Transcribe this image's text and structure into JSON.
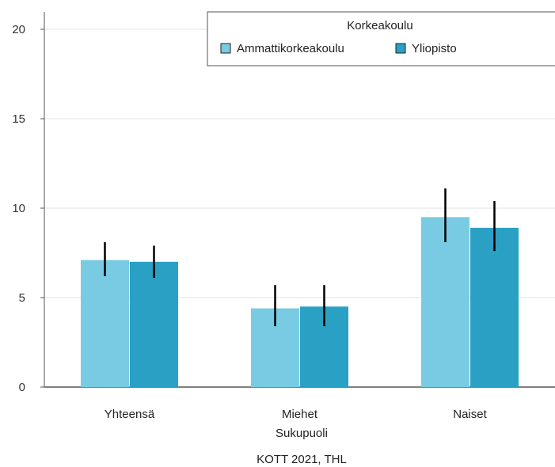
{
  "chart_data": {
    "type": "bar",
    "categories": [
      "Yhteensä",
      "Miehet",
      "Naiset"
    ],
    "xlabel": "Sukupuoli",
    "ylabel": "",
    "ylim": [
      0,
      20
    ],
    "yticks": [
      0,
      5,
      10,
      15,
      20
    ],
    "grid": true,
    "legend": {
      "title": "Korkeakoulu",
      "position": "top-right"
    },
    "series": [
      {
        "name": "Ammattikorkeakoulu",
        "color": "#79cbe3",
        "values": [
          7.1,
          4.4,
          9.5
        ],
        "error_low": [
          6.2,
          3.4,
          8.1
        ],
        "error_high": [
          8.1,
          5.7,
          11.1
        ]
      },
      {
        "name": "Yliopisto",
        "color": "#2aa0c4",
        "values": [
          7.0,
          4.5,
          8.9
        ],
        "error_low": [
          6.1,
          3.4,
          7.6
        ],
        "error_high": [
          7.9,
          5.7,
          10.4
        ]
      }
    ],
    "source": "KOTT 2021, THL"
  }
}
